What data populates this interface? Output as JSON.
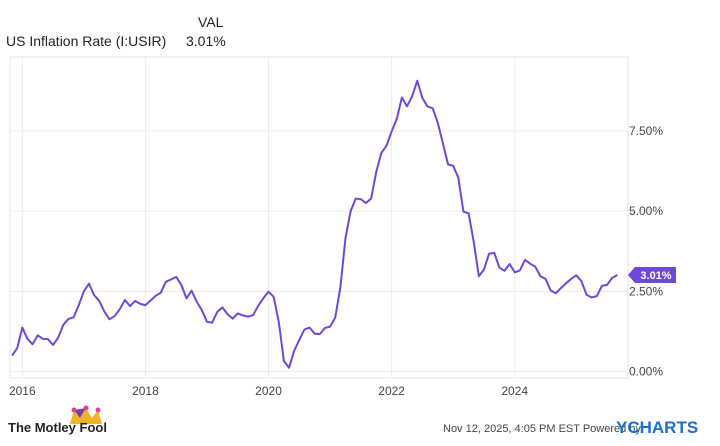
{
  "chart_data": {
    "type": "line",
    "column_header": "VAL",
    "current_value": "3.01%",
    "series": [
      {
        "name": "US Inflation Rate (I:USIR)",
        "color": "#7048d8",
        "x": [
          2015.833,
          2015.917,
          2016,
          2016.083,
          2016.167,
          2016.25,
          2016.333,
          2016.417,
          2016.5,
          2016.583,
          2016.667,
          2016.75,
          2016.833,
          2016.917,
          2017,
          2017.083,
          2017.167,
          2017.25,
          2017.333,
          2017.417,
          2017.5,
          2017.583,
          2017.667,
          2017.75,
          2017.833,
          2017.917,
          2018,
          2018.083,
          2018.167,
          2018.25,
          2018.333,
          2018.417,
          2018.5,
          2018.583,
          2018.667,
          2018.75,
          2018.833,
          2018.917,
          2019,
          2019.083,
          2019.167,
          2019.25,
          2019.333,
          2019.417,
          2019.5,
          2019.583,
          2019.667,
          2019.75,
          2019.833,
          2019.917,
          2020,
          2020.083,
          2020.167,
          2020.25,
          2020.333,
          2020.417,
          2020.5,
          2020.583,
          2020.667,
          2020.75,
          2020.833,
          2020.917,
          2021,
          2021.083,
          2021.167,
          2021.25,
          2021.333,
          2021.417,
          2021.5,
          2021.583,
          2021.667,
          2021.75,
          2021.833,
          2021.917,
          2022,
          2022.083,
          2022.167,
          2022.25,
          2022.333,
          2022.417,
          2022.5,
          2022.583,
          2022.667,
          2022.75,
          2022.833,
          2022.917,
          2023,
          2023.083,
          2023.167,
          2023.25,
          2023.333,
          2023.417,
          2023.5,
          2023.583,
          2023.667,
          2023.75,
          2023.833,
          2023.917,
          2024,
          2024.083,
          2024.167,
          2024.25,
          2024.333,
          2024.417,
          2024.5,
          2024.583,
          2024.667,
          2024.75,
          2024.833,
          2024.917,
          2025,
          2025.083,
          2025.167,
          2025.25,
          2025.333,
          2025.417,
          2025.5,
          2025.583,
          2025.667
        ],
        "values": [
          0.5,
          0.73,
          1.37,
          1.02,
          0.85,
          1.13,
          1.02,
          1.01,
          0.83,
          1.06,
          1.46,
          1.64,
          1.69,
          2.07,
          2.5,
          2.74,
          2.38,
          2.2,
          1.87,
          1.63,
          1.73,
          1.94,
          2.23,
          2.04,
          2.2,
          2.11,
          2.07,
          2.21,
          2.36,
          2.46,
          2.8,
          2.87,
          2.95,
          2.7,
          2.28,
          2.52,
          2.18,
          1.91,
          1.55,
          1.52,
          1.86,
          2.0,
          1.79,
          1.65,
          1.81,
          1.75,
          1.71,
          1.76,
          2.05,
          2.29,
          2.49,
          2.33,
          1.54,
          0.33,
          0.12,
          0.65,
          0.99,
          1.31,
          1.37,
          1.18,
          1.17,
          1.36,
          1.4,
          1.68,
          2.62,
          4.16,
          4.99,
          5.39,
          5.37,
          5.25,
          5.39,
          6.22,
          6.81,
          7.04,
          7.48,
          7.87,
          8.54,
          8.26,
          8.58,
          9.06,
          8.52,
          8.26,
          8.2,
          7.75,
          7.11,
          6.45,
          6.41,
          6.04,
          4.98,
          4.93,
          4.05,
          2.97,
          3.18,
          3.67,
          3.7,
          3.24,
          3.14,
          3.35,
          3.09,
          3.15,
          3.48,
          3.36,
          3.27,
          2.97,
          2.89,
          2.53,
          2.44,
          2.6,
          2.75,
          2.89,
          3.0,
          2.82,
          2.39,
          2.31,
          2.35,
          2.67,
          2.7,
          2.92,
          3.01
        ]
      }
    ],
    "xlim": [
      2015.8,
      2025.84
    ],
    "xticks": [
      2016,
      2018,
      2020,
      2022,
      2024
    ],
    "ylim": [
      -0.2,
      9.8
    ],
    "yticks": [
      {
        "value": 0,
        "label": "0.00%"
      },
      {
        "value": 2.5,
        "label": "2.50%"
      },
      {
        "value": 5,
        "label": "5.00%"
      },
      {
        "value": 7.5,
        "label": "7.50%"
      }
    ],
    "grid": true
  },
  "footer": {
    "brand": "The Motley Fool",
    "timestamp": "Nov 12, 2025, 4:05 PM EST Powered by",
    "provider": "YCHARTS"
  }
}
